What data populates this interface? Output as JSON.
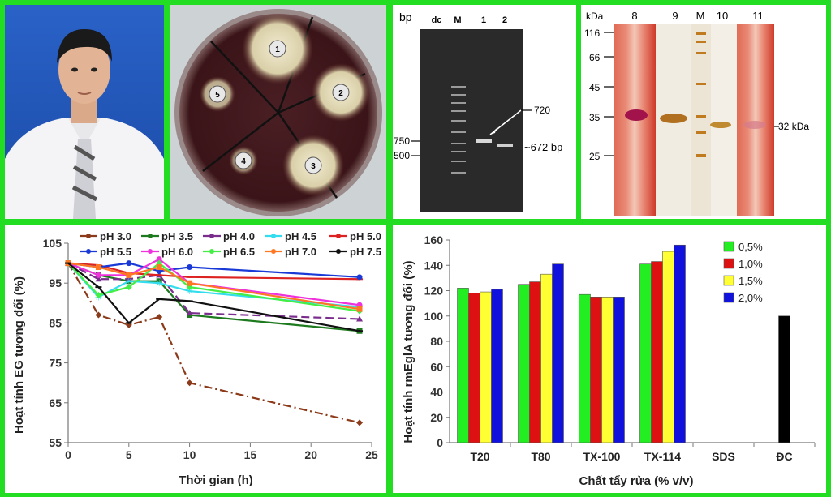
{
  "plate": {
    "wells": [
      "1",
      "2",
      "3",
      "4",
      "5"
    ]
  },
  "gel": {
    "unit": "bp",
    "lanes": [
      "dc",
      "M",
      "1",
      "2"
    ],
    "markers": [
      "750",
      "500"
    ],
    "arrow_label": "720",
    "band_label": "~672 bp"
  },
  "sds": {
    "unit": "kDa",
    "lanes": [
      "8",
      "9",
      "M",
      "10",
      "11"
    ],
    "markers": [
      "116",
      "66",
      "45",
      "35",
      "25"
    ],
    "band_label": "~32 kDa"
  },
  "colors": {
    "background": "#22dd22",
    "ph_series": [
      "#8b3a1a",
      "#1e7a1e",
      "#7b2d8e",
      "#33ddee",
      "#dd2222",
      "#1a3ad8",
      "#ee33dd",
      "#44ee44",
      "#ff7722",
      "#111111"
    ],
    "detergent_series": [
      "#22ee22",
      "#dd1111",
      "#ffff33",
      "#1111dd",
      "#000000"
    ]
  },
  "chart_data": [
    {
      "type": "line",
      "xlabel": "Thời gian (h)",
      "ylabel": "Hoạt tính EG tương đối (%)",
      "xlim": [
        0,
        25
      ],
      "ylim": [
        55,
        105
      ],
      "xticks": [
        0,
        5,
        10,
        15,
        20,
        25
      ],
      "yticks": [
        55,
        65,
        75,
        85,
        95,
        105
      ],
      "grid": false,
      "legend": "top",
      "x": [
        0,
        2.5,
        5,
        7.5,
        10,
        24
      ],
      "series": [
        {
          "name": "pH 3.0",
          "values": [
            100,
            87,
            84.5,
            86.5,
            70,
            60
          ]
        },
        {
          "name": "pH 3.5",
          "values": [
            100,
            97,
            95.5,
            95.5,
            87,
            83
          ]
        },
        {
          "name": "pH 4.0",
          "values": [
            100,
            96,
            96,
            97,
            87.5,
            86
          ]
        },
        {
          "name": "pH 4.5",
          "values": [
            100,
            91.5,
            95.5,
            95,
            93,
            89
          ]
        },
        {
          "name": "pH 5.0",
          "values": [
            100,
            99.5,
            97.5,
            97,
            96.5,
            96
          ]
        },
        {
          "name": "pH 5.5",
          "values": [
            100,
            99,
            100,
            98,
            99,
            96.5
          ]
        },
        {
          "name": "pH 6.0",
          "values": [
            100,
            97,
            97,
            101,
            95,
            89.5
          ]
        },
        {
          "name": "pH 6.5",
          "values": [
            100,
            92,
            94,
            100,
            94,
            88
          ]
        },
        {
          "name": "pH 7.0",
          "values": [
            100,
            99,
            97,
            99,
            95,
            88.5
          ]
        },
        {
          "name": "pH 7.5",
          "values": [
            100,
            94,
            85,
            91,
            90.5,
            83
          ]
        }
      ]
    },
    {
      "type": "bar",
      "xlabel": "Chất tẩy rửa (% v/v)",
      "ylabel": "Hoạt tính rmEglA tương đối (%)",
      "ylim": [
        0,
        160
      ],
      "yticks": [
        0,
        20,
        40,
        60,
        80,
        100,
        120,
        140,
        160
      ],
      "grid": false,
      "legend": "top-right",
      "categories": [
        "T20",
        "T80",
        "TX-100",
        "TX-114",
        "SDS",
        "ĐC"
      ],
      "series": [
        {
          "name": "0,5%",
          "values": [
            122,
            125,
            117,
            141,
            null,
            null
          ]
        },
        {
          "name": "1,0%",
          "values": [
            118,
            127,
            115,
            143,
            null,
            null
          ]
        },
        {
          "name": "1,5%",
          "values": [
            119,
            133,
            115,
            151,
            null,
            null
          ]
        },
        {
          "name": "2,0%",
          "values": [
            121,
            141,
            115,
            156,
            null,
            null
          ]
        },
        {
          "name": "",
          "values": [
            null,
            null,
            null,
            null,
            null,
            100
          ]
        }
      ]
    }
  ]
}
